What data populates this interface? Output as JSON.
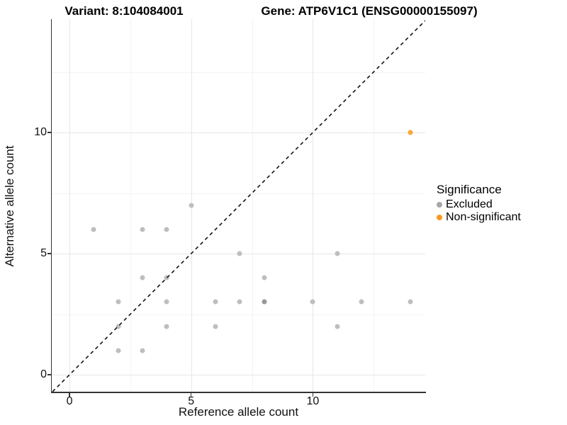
{
  "titles": {
    "variant": "Variant: 8:104084001",
    "gene": "Gene: ATP6V1C1 (ENSG00000155097)"
  },
  "axes": {
    "x": {
      "label": "Reference allele count",
      "ticks": [
        0,
        5,
        10
      ],
      "minor_ticks": [
        2.5,
        7.5,
        12.5
      ],
      "range": [
        -0.73,
        14.62
      ]
    },
    "y": {
      "label": "Alternative allele count",
      "ticks": [
        0,
        5,
        10
      ],
      "minor_ticks": [
        2.5,
        7.5,
        12.5
      ],
      "range": [
        -0.7,
        14.68
      ]
    }
  },
  "legend": {
    "title": "Significance",
    "items": [
      {
        "label": "Excluded",
        "color": "#a6a6a6"
      },
      {
        "label": "Non-significant",
        "color": "#f8991d"
      }
    ]
  },
  "colors": {
    "axis_line": "#333333",
    "grid_major": "#e6e6e6",
    "grid_minor": "#f3f3f3",
    "reference_line": "#111111"
  },
  "chart_data": {
    "type": "scatter",
    "title": "Variant: 8:104084001 | Gene: ATP6V1C1 (ENSG00000155097)",
    "xlabel": "Reference allele count",
    "ylabel": "Alternative allele count",
    "xlim": [
      -0.73,
      14.62
    ],
    "ylim": [
      -0.7,
      14.68
    ],
    "grid": "on",
    "legend_position": "right",
    "reference_line": {
      "type": "identity y=x",
      "style": "dashed",
      "color": "#111111"
    },
    "series": [
      {
        "name": "Excluded",
        "color": "#bebebe",
        "points": [
          [
            1,
            6
          ],
          [
            2,
            1
          ],
          [
            2,
            2
          ],
          [
            2,
            3
          ],
          [
            3,
            1
          ],
          [
            3,
            4
          ],
          [
            3,
            6
          ],
          [
            4,
            2
          ],
          [
            4,
            3
          ],
          [
            4,
            4
          ],
          [
            4,
            6
          ],
          [
            5,
            7
          ],
          [
            6,
            2
          ],
          [
            6,
            3
          ],
          [
            7,
            3
          ],
          [
            7,
            5
          ],
          [
            8,
            3
          ],
          [
            8,
            4
          ],
          [
            10,
            3
          ],
          [
            11,
            2
          ],
          [
            11,
            5
          ],
          [
            12,
            3
          ],
          [
            14,
            3
          ]
        ],
        "overplotted_points": [
          [
            8,
            3
          ]
        ],
        "overplotted_color": "#989898"
      },
      {
        "name": "Non-significant",
        "color": "#faa636",
        "points": [
          [
            14,
            10
          ]
        ]
      }
    ]
  }
}
